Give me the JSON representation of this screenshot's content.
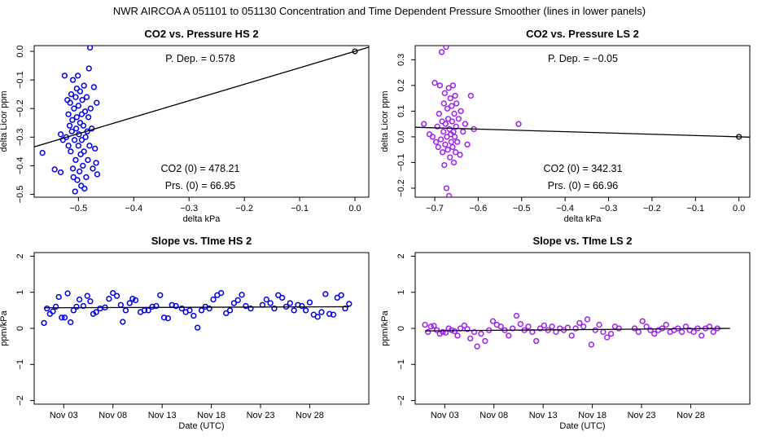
{
  "main_title": "NWR   AIRCOA A   051101 to 051130   Concentration and Time Dependent Pressure Smoother (lines in lower panels)",
  "chart_data": [
    {
      "id": "p1",
      "type": "scatter",
      "title": "CO2 vs. Pressure HS 2",
      "xlabel": "delta kPa",
      "ylabel": "delta Licor ppm",
      "xlim": [
        -0.58,
        0.025
      ],
      "ylim": [
        -0.51,
        0.02
      ],
      "xticks": [
        -0.5,
        -0.4,
        -0.3,
        -0.2,
        -0.1,
        0.0
      ],
      "xtick_labels": [
        "−0.5",
        "−0.4",
        "−0.3",
        "−0.2",
        "−0.1",
        "0.0"
      ],
      "yticks": [
        0.0,
        -0.1,
        -0.2,
        -0.3,
        -0.4,
        -0.5
      ],
      "ytick_labels": [
        "0.0",
        "−0.1",
        "−0.2",
        "−0.3",
        "−0.4",
        "−0.5"
      ],
      "color": "#0000ee",
      "fit_line": {
        "x": [
          -0.58,
          0.025
        ],
        "y": [
          -0.334,
          0.0145
        ]
      },
      "ref_point": {
        "x": 0.0,
        "y": 0.0
      },
      "annotations": {
        "dep": "P. Dep. =  0.578",
        "co2": "CO2 (0) =  478.21",
        "prs": "Prs. (0) =  66.95"
      },
      "points": [
        [
          -0.565,
          -0.355
        ],
        [
          -0.543,
          -0.413
        ],
        [
          -0.532,
          -0.423
        ],
        [
          -0.532,
          -0.29
        ],
        [
          -0.528,
          -0.31
        ],
        [
          -0.525,
          -0.085
        ],
        [
          -0.522,
          -0.3
        ],
        [
          -0.52,
          -0.17
        ],
        [
          -0.518,
          -0.33
        ],
        [
          -0.518,
          -0.22
        ],
        [
          -0.516,
          -0.26
        ],
        [
          -0.515,
          -0.18
        ],
        [
          -0.514,
          -0.35
        ],
        [
          -0.513,
          -0.15
        ],
        [
          -0.512,
          -0.28
        ],
        [
          -0.511,
          -0.24
        ],
        [
          -0.51,
          -0.41
        ],
        [
          -0.51,
          -0.1
        ],
        [
          -0.509,
          -0.44
        ],
        [
          -0.508,
          -0.2
        ],
        [
          -0.507,
          -0.31
        ],
        [
          -0.506,
          -0.49
        ],
        [
          -0.505,
          -0.16
        ],
        [
          -0.505,
          -0.38
        ],
        [
          -0.504,
          -0.27
        ],
        [
          -0.503,
          -0.13
        ],
        [
          -0.503,
          -0.23
        ],
        [
          -0.502,
          -0.45
        ],
        [
          -0.501,
          -0.085
        ],
        [
          -0.5,
          -0.33
        ],
        [
          -0.5,
          -0.19
        ],
        [
          -0.499,
          -0.29
        ],
        [
          -0.498,
          -0.42
        ],
        [
          -0.497,
          -0.25
        ],
        [
          -0.497,
          -0.14
        ],
        [
          -0.496,
          -0.36
        ],
        [
          -0.495,
          -0.47
        ],
        [
          -0.494,
          -0.22
        ],
        [
          -0.494,
          -0.31
        ],
        [
          -0.493,
          -0.17
        ],
        [
          -0.492,
          -0.4
        ],
        [
          -0.491,
          -0.26
        ],
        [
          -0.49,
          -0.12
        ],
        [
          -0.49,
          -0.35
        ],
        [
          -0.489,
          -0.48
        ],
        [
          -0.488,
          -0.21
        ],
        [
          -0.487,
          -0.3
        ],
        [
          -0.486,
          -0.44
        ],
        [
          -0.485,
          -0.16
        ],
        [
          -0.484,
          -0.28
        ],
        [
          -0.483,
          -0.38
        ],
        [
          -0.482,
          -0.23
        ],
        [
          -0.481,
          -0.06
        ],
        [
          -0.48,
          -0.33
        ],
        [
          -0.479,
          0.013
        ],
        [
          -0.478,
          -0.2
        ],
        [
          -0.476,
          -0.27
        ],
        [
          -0.474,
          -0.41
        ],
        [
          -0.472,
          -0.125
        ],
        [
          -0.47,
          -0.34
        ],
        [
          -0.468,
          -0.39
        ],
        [
          -0.467,
          -0.18
        ],
        [
          -0.466,
          -0.43
        ]
      ]
    },
    {
      "id": "p2",
      "type": "scatter",
      "title": "CO2 vs. Pressure LS 2",
      "xlabel": "delta kPa",
      "ylabel": "delta Licor ppm",
      "xlim": [
        -0.745,
        0.025
      ],
      "ylim": [
        -0.235,
        0.355
      ],
      "xticks": [
        -0.7,
        -0.6,
        -0.5,
        -0.4,
        -0.3,
        -0.2,
        -0.1,
        0.0
      ],
      "xtick_labels": [
        "−0.7",
        "−0.6",
        "−0.5",
        "−0.4",
        "−0.3",
        "−0.2",
        "−0.1",
        "0.0"
      ],
      "yticks": [
        0.3,
        0.2,
        0.1,
        0.0,
        -0.1,
        -0.2
      ],
      "ytick_labels": [
        "0.3",
        "0.2",
        "0.1",
        "0.0",
        "−0.1",
        "−0.2"
      ],
      "color": "#a020f0",
      "fit_line": {
        "x": [
          -0.745,
          0.025
        ],
        "y": [
          0.0372,
          -0.0013
        ]
      },
      "ref_point": {
        "x": 0.0,
        "y": 0.0
      },
      "annotations": {
        "dep": "P. Dep. =  −0.05",
        "co2": "CO2 (0) =  342.31",
        "prs": "Prs. (0) =  66.96"
      },
      "points": [
        [
          -0.725,
          0.05
        ],
        [
          -0.712,
          0.01
        ],
        [
          -0.705,
          0.0
        ],
        [
          -0.7,
          0.21
        ],
        [
          -0.697,
          -0.02
        ],
        [
          -0.694,
          0.04
        ],
        [
          -0.692,
          -0.04
        ],
        [
          -0.69,
          0.09
        ],
        [
          -0.688,
          0.2
        ],
        [
          -0.686,
          -0.01
        ],
        [
          -0.684,
          0.33
        ],
        [
          -0.683,
          0.06
        ],
        [
          -0.682,
          -0.06
        ],
        [
          -0.68,
          0.02
        ],
        [
          -0.679,
          0.13
        ],
        [
          -0.678,
          -0.11
        ],
        [
          -0.677,
          0.17
        ],
        [
          -0.676,
          -0.03
        ],
        [
          -0.675,
          0.05
        ],
        [
          -0.674,
          0.35
        ],
        [
          -0.673,
          -0.2
        ],
        [
          -0.672,
          0.0
        ],
        [
          -0.671,
          0.11
        ],
        [
          -0.67,
          -0.05
        ],
        [
          -0.669,
          0.07
        ],
        [
          -0.668,
          0.19
        ],
        [
          -0.667,
          -0.23
        ],
        [
          -0.666,
          0.03
        ],
        [
          -0.665,
          -0.08
        ],
        [
          -0.664,
          0.15
        ],
        [
          -0.663,
          0.01
        ],
        [
          -0.662,
          -0.02
        ],
        [
          -0.661,
          0.12
        ],
        [
          -0.66,
          0.06
        ],
        [
          -0.659,
          -0.04
        ],
        [
          -0.658,
          0.2
        ],
        [
          -0.657,
          0.02
        ],
        [
          -0.656,
          -0.1
        ],
        [
          -0.655,
          0.09
        ],
        [
          -0.654,
          0.0
        ],
        [
          -0.653,
          0.16
        ],
        [
          -0.652,
          -0.06
        ],
        [
          -0.651,
          0.04
        ],
        [
          -0.65,
          0.13
        ],
        [
          -0.648,
          -0.02
        ],
        [
          -0.645,
          0.07
        ],
        [
          -0.642,
          -0.07
        ],
        [
          -0.64,
          0.1
        ],
        [
          -0.635,
          0.02
        ],
        [
          -0.63,
          0.05
        ],
        [
          -0.625,
          -0.03
        ],
        [
          -0.617,
          0.16
        ],
        [
          -0.61,
          0.03
        ],
        [
          -0.507,
          0.05
        ]
      ]
    },
    {
      "id": "p3",
      "type": "scatter",
      "title": "Slope vs. TIme HS 2",
      "xlabel": "Date (UTC)",
      "ylabel": "ppm/kPa",
      "xlim": [
        -1.0,
        33.0
      ],
      "ylim": [
        -2.1,
        2.1
      ],
      "xticks": [
        2,
        7,
        12,
        17,
        22,
        27
      ],
      "xtick_labels": [
        "Nov 03",
        "Nov 08",
        "Nov 13",
        "Nov 18",
        "Nov 23",
        "Nov 28"
      ],
      "yticks": [
        2,
        1,
        0,
        -1,
        -2
      ],
      "ytick_labels": [
        "2",
        "1",
        "0",
        "−1",
        "−2"
      ],
      "color": "#0000ee",
      "fit_line": {
        "x": [
          0.0,
          31.0
        ],
        "y": [
          0.57,
          0.6
        ]
      },
      "points": [
        [
          0.0,
          0.15
        ],
        [
          0.3,
          0.55
        ],
        [
          0.6,
          0.4
        ],
        [
          0.9,
          0.47
        ],
        [
          1.2,
          0.6
        ],
        [
          1.5,
          0.87
        ],
        [
          1.8,
          0.3
        ],
        [
          2.1,
          0.3
        ],
        [
          2.4,
          0.97
        ],
        [
          2.7,
          0.17
        ],
        [
          3.0,
          0.5
        ],
        [
          3.3,
          0.6
        ],
        [
          3.6,
          0.8
        ],
        [
          4.0,
          0.62
        ],
        [
          4.4,
          0.9
        ],
        [
          4.7,
          0.75
        ],
        [
          5.0,
          0.4
        ],
        [
          5.3,
          0.45
        ],
        [
          5.7,
          0.55
        ],
        [
          6.2,
          0.58
        ],
        [
          6.6,
          0.82
        ],
        [
          7.0,
          0.98
        ],
        [
          7.4,
          0.9
        ],
        [
          7.8,
          0.65
        ],
        [
          8.0,
          0.18
        ],
        [
          8.3,
          0.5
        ],
        [
          8.7,
          0.7
        ],
        [
          9.0,
          0.82
        ],
        [
          9.3,
          0.78
        ],
        [
          9.8,
          0.45
        ],
        [
          10.2,
          0.5
        ],
        [
          10.6,
          0.5
        ],
        [
          11.0,
          0.6
        ],
        [
          11.4,
          0.62
        ],
        [
          11.8,
          0.92
        ],
        [
          12.2,
          0.3
        ],
        [
          12.6,
          0.28
        ],
        [
          13.0,
          0.65
        ],
        [
          13.4,
          0.62
        ],
        [
          14.0,
          0.55
        ],
        [
          14.4,
          0.45
        ],
        [
          14.8,
          0.5
        ],
        [
          15.2,
          0.35
        ],
        [
          15.6,
          0.02
        ],
        [
          16.0,
          0.5
        ],
        [
          16.4,
          0.6
        ],
        [
          16.8,
          0.55
        ],
        [
          17.2,
          0.8
        ],
        [
          17.6,
          0.92
        ],
        [
          18.0,
          0.98
        ],
        [
          18.5,
          0.42
        ],
        [
          18.9,
          0.5
        ],
        [
          19.3,
          0.7
        ],
        [
          19.7,
          0.78
        ],
        [
          20.1,
          0.93
        ],
        [
          20.5,
          0.62
        ],
        [
          21.0,
          0.55
        ],
        [
          22.2,
          0.65
        ],
        [
          22.6,
          0.8
        ],
        [
          23.0,
          0.7
        ],
        [
          23.4,
          0.55
        ],
        [
          23.8,
          0.92
        ],
        [
          24.2,
          0.85
        ],
        [
          24.6,
          0.6
        ],
        [
          25.0,
          0.7
        ],
        [
          25.4,
          0.5
        ],
        [
          25.8,
          0.65
        ],
        [
          26.2,
          0.62
        ],
        [
          26.6,
          0.5
        ],
        [
          27.0,
          0.72
        ],
        [
          27.4,
          0.38
        ],
        [
          27.8,
          0.32
        ],
        [
          28.2,
          0.45
        ],
        [
          28.6,
          0.95
        ],
        [
          29.0,
          0.4
        ],
        [
          29.4,
          0.38
        ],
        [
          29.8,
          0.85
        ],
        [
          30.2,
          0.92
        ],
        [
          30.6,
          0.55
        ],
        [
          31.0,
          0.68
        ]
      ]
    },
    {
      "id": "p4",
      "type": "scatter",
      "title": "Slope vs. TIme LS 2",
      "xlabel": "Date (UTC)",
      "ylabel": "ppm/kPa",
      "xlim": [
        -1.0,
        33.0
      ],
      "ylim": [
        -2.1,
        2.1
      ],
      "xticks": [
        2,
        7,
        12,
        17,
        22,
        27
      ],
      "xtick_labels": [
        "Nov 03",
        "Nov 08",
        "Nov 13",
        "Nov 18",
        "Nov 23",
        "Nov 28"
      ],
      "yticks": [
        2,
        1,
        0,
        -1,
        -2
      ],
      "ytick_labels": [
        "2",
        "1",
        "0",
        "−1",
        "−2"
      ],
      "color": "#a020f0",
      "fit_line": {
        "x": [
          0.0,
          31.0
        ],
        "y": [
          -0.07,
          0.0
        ]
      },
      "points": [
        [
          0.0,
          0.1
        ],
        [
          0.3,
          -0.1
        ],
        [
          0.6,
          0.05
        ],
        [
          0.9,
          0.07
        ],
        [
          1.2,
          -0.05
        ],
        [
          1.5,
          -0.15
        ],
        [
          1.8,
          -0.1
        ],
        [
          2.1,
          -0.12
        ],
        [
          2.4,
          0.0
        ],
        [
          2.7,
          -0.05
        ],
        [
          3.0,
          -0.08
        ],
        [
          3.3,
          -0.2
        ],
        [
          3.6,
          0.0
        ],
        [
          4.0,
          0.08
        ],
        [
          4.3,
          -0.02
        ],
        [
          4.6,
          -0.28
        ],
        [
          5.0,
          -0.1
        ],
        [
          5.3,
          -0.5
        ],
        [
          5.7,
          -0.15
        ],
        [
          6.1,
          -0.35
        ],
        [
          6.5,
          -0.05
        ],
        [
          6.9,
          0.2
        ],
        [
          7.3,
          0.1
        ],
        [
          7.7,
          0.05
        ],
        [
          8.1,
          -0.05
        ],
        [
          8.5,
          -0.2
        ],
        [
          8.9,
          0.0
        ],
        [
          9.3,
          0.35
        ],
        [
          9.7,
          0.12
        ],
        [
          10.1,
          -0.05
        ],
        [
          10.5,
          0.05
        ],
        [
          10.9,
          -0.1
        ],
        [
          11.3,
          -0.35
        ],
        [
          11.7,
          0.0
        ],
        [
          12.1,
          0.08
        ],
        [
          12.5,
          -0.05
        ],
        [
          12.9,
          0.05
        ],
        [
          13.3,
          -0.1
        ],
        [
          13.7,
          0.0
        ],
        [
          14.1,
          -0.05
        ],
        [
          14.5,
          0.02
        ],
        [
          14.9,
          -0.2
        ],
        [
          15.3,
          0.0
        ],
        [
          15.7,
          0.15
        ],
        [
          16.1,
          0.05
        ],
        [
          16.5,
          0.25
        ],
        [
          16.9,
          -0.45
        ],
        [
          17.3,
          -0.05
        ],
        [
          17.7,
          0.1
        ],
        [
          18.1,
          -0.1
        ],
        [
          18.5,
          -0.25
        ],
        [
          18.9,
          -0.15
        ],
        [
          19.3,
          0.05
        ],
        [
          19.7,
          0.0
        ],
        [
          21.3,
          0.0
        ],
        [
          21.7,
          -0.1
        ],
        [
          22.1,
          0.2
        ],
        [
          22.5,
          0.05
        ],
        [
          22.9,
          -0.05
        ],
        [
          23.3,
          -0.15
        ],
        [
          23.7,
          -0.05
        ],
        [
          24.1,
          0.0
        ],
        [
          24.5,
          0.1
        ],
        [
          24.9,
          -0.1
        ],
        [
          25.3,
          -0.05
        ],
        [
          25.7,
          0.0
        ],
        [
          26.1,
          -0.1
        ],
        [
          26.5,
          0.05
        ],
        [
          26.9,
          -0.05
        ],
        [
          27.3,
          -0.1
        ],
        [
          27.7,
          0.0
        ],
        [
          28.1,
          -0.2
        ],
        [
          28.5,
          0.0
        ],
        [
          28.9,
          0.05
        ],
        [
          29.3,
          -0.1
        ],
        [
          29.7,
          0.0
        ]
      ]
    }
  ]
}
